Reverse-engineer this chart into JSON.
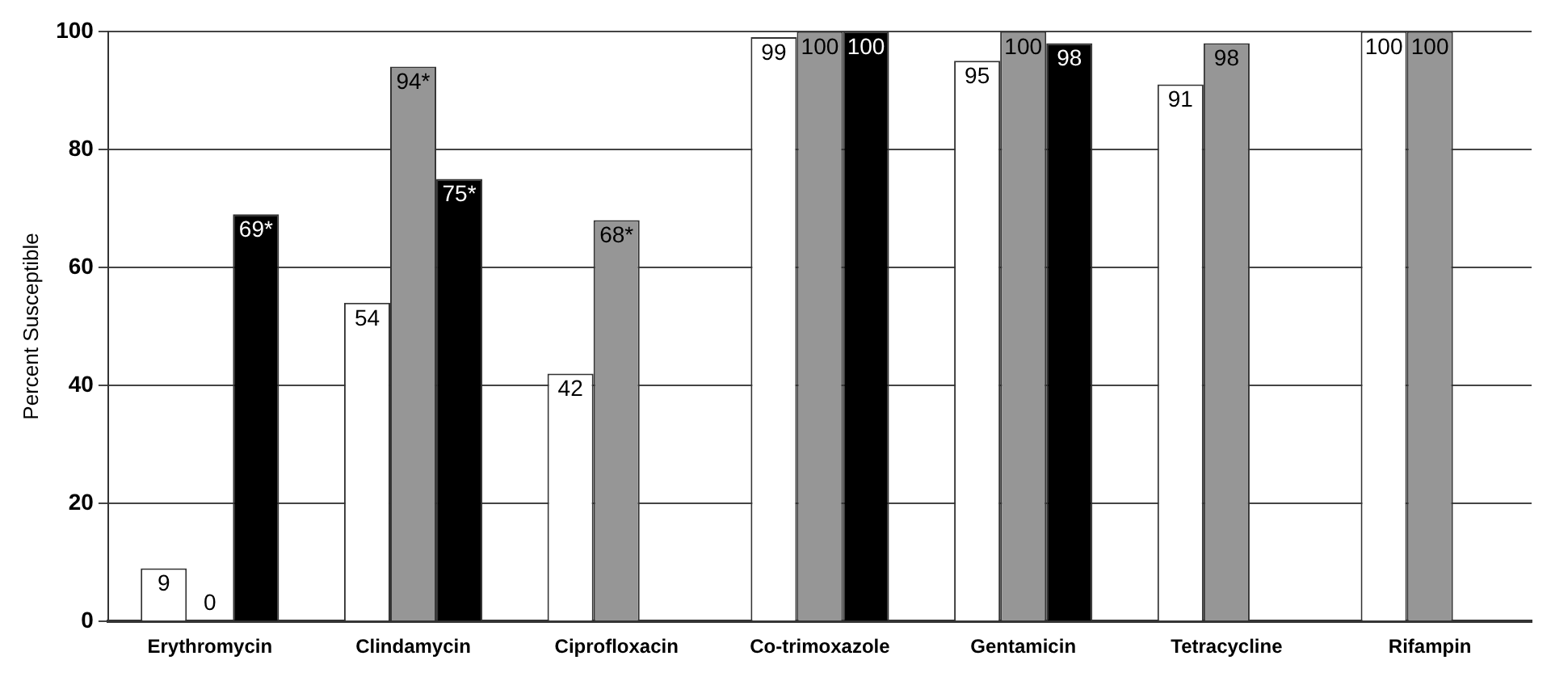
{
  "chart_data": {
    "type": "bar",
    "ylabel": "Percent Susceptible",
    "categories": [
      "Erythromycin",
      "Clindamycin",
      "Ciprofloxacin",
      "Co-trimoxazole",
      "Gentamicin",
      "Tetracycline",
      "Rifampin"
    ],
    "series": [
      {
        "color": "#ffffff",
        "values": [
          9,
          54,
          42,
          99,
          95,
          91,
          100
        ],
        "value_labels": [
          "9",
          "54",
          "42",
          "99",
          "95",
          "91",
          "100"
        ]
      },
      {
        "color": "#969696",
        "values": [
          0,
          94,
          68,
          100,
          100,
          98,
          100
        ],
        "value_labels": [
          "0",
          "94*",
          "68*",
          "100",
          "100",
          "98",
          "100"
        ]
      },
      {
        "color": "#000000",
        "values": [
          69,
          75,
          null,
          100,
          98,
          null,
          null
        ],
        "value_labels": [
          "69*",
          "75*",
          null,
          "100",
          "98",
          null,
          null
        ]
      }
    ],
    "ylim": [
      0,
      100
    ],
    "yticks": [
      0,
      20,
      40,
      60,
      80,
      100
    ],
    "grid": "y",
    "legend": false
  }
}
